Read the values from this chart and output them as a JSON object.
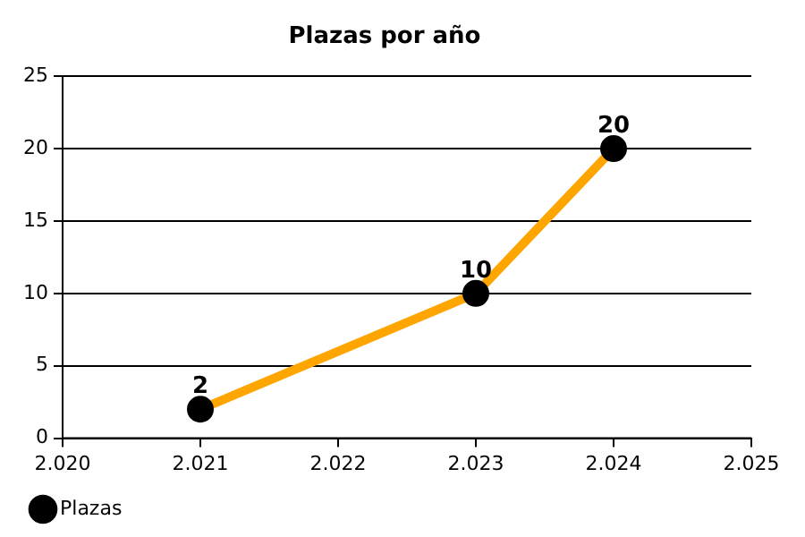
{
  "chart_data": {
    "type": "line",
    "title": "Plazas por año",
    "x": [
      2021,
      2023,
      2024
    ],
    "series": [
      {
        "name": "Plazas",
        "color": "#ffa500",
        "values": [
          2,
          10,
          20
        ]
      }
    ],
    "xlim": [
      2020,
      2025
    ],
    "xticks": [
      {
        "value": 2020,
        "label": "2.020"
      },
      {
        "value": 2021,
        "label": "2.021"
      },
      {
        "value": 2022,
        "label": "2.022"
      },
      {
        "value": 2023,
        "label": "2.023"
      },
      {
        "value": 2024,
        "label": "2.024"
      },
      {
        "value": 2025,
        "label": "2.025"
      }
    ],
    "ylim": [
      0,
      25
    ],
    "yticks": [
      0,
      5,
      10,
      15,
      20,
      25
    ],
    "grid": "y",
    "legend": "bottom left",
    "marker": "circle",
    "line_style": "solid",
    "data_labels": true
  }
}
